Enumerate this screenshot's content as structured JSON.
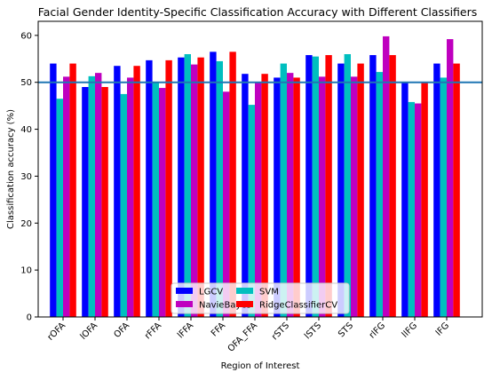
{
  "chart_data": {
    "type": "bar",
    "title": "Facial Gender Identity-Specific Classification Accuracy with Different Classifiers",
    "xlabel": "Region of Interest",
    "ylabel": "Classification accuracy (%)",
    "ylim": [
      0,
      63
    ],
    "yticks": [
      0,
      10,
      20,
      30,
      40,
      50,
      60
    ],
    "grid": false,
    "legend_position": "lower center",
    "reference_line": {
      "y": 50,
      "color": "#1f77b4"
    },
    "categories": [
      "rOFA",
      "lOFA",
      "OFA",
      "rFFA",
      "lFFA",
      "FFA",
      "OFA_FFA",
      "rSTS",
      "lSTS",
      "STS",
      "rIFG",
      "lIFG",
      "IFG"
    ],
    "series": [
      {
        "name": "LGCV",
        "color": "#0000ff",
        "values": [
          54.0,
          49.0,
          53.5,
          54.7,
          55.3,
          56.5,
          51.8,
          51.0,
          55.8,
          54.0,
          55.8,
          50.0,
          54.0
        ]
      },
      {
        "name": "SVM",
        "color": "#00bfbf",
        "values": [
          46.5,
          51.3,
          47.5,
          50.0,
          56.0,
          54.5,
          45.2,
          54.0,
          55.5,
          56.0,
          52.2,
          45.8,
          51.0
        ]
      },
      {
        "name": "NavieBayes",
        "color": "#bf00bf",
        "values": [
          51.2,
          52.0,
          51.0,
          48.8,
          53.8,
          48.0,
          50.0,
          52.0,
          51.2,
          51.2,
          59.8,
          45.5,
          59.2
        ]
      },
      {
        "name": "RidgeClassifierCV",
        "color": "#ff0000",
        "values": [
          54.0,
          49.0,
          53.5,
          54.7,
          55.3,
          56.5,
          51.8,
          51.0,
          55.8,
          54.0,
          55.8,
          50.0,
          54.0
        ]
      }
    ]
  }
}
